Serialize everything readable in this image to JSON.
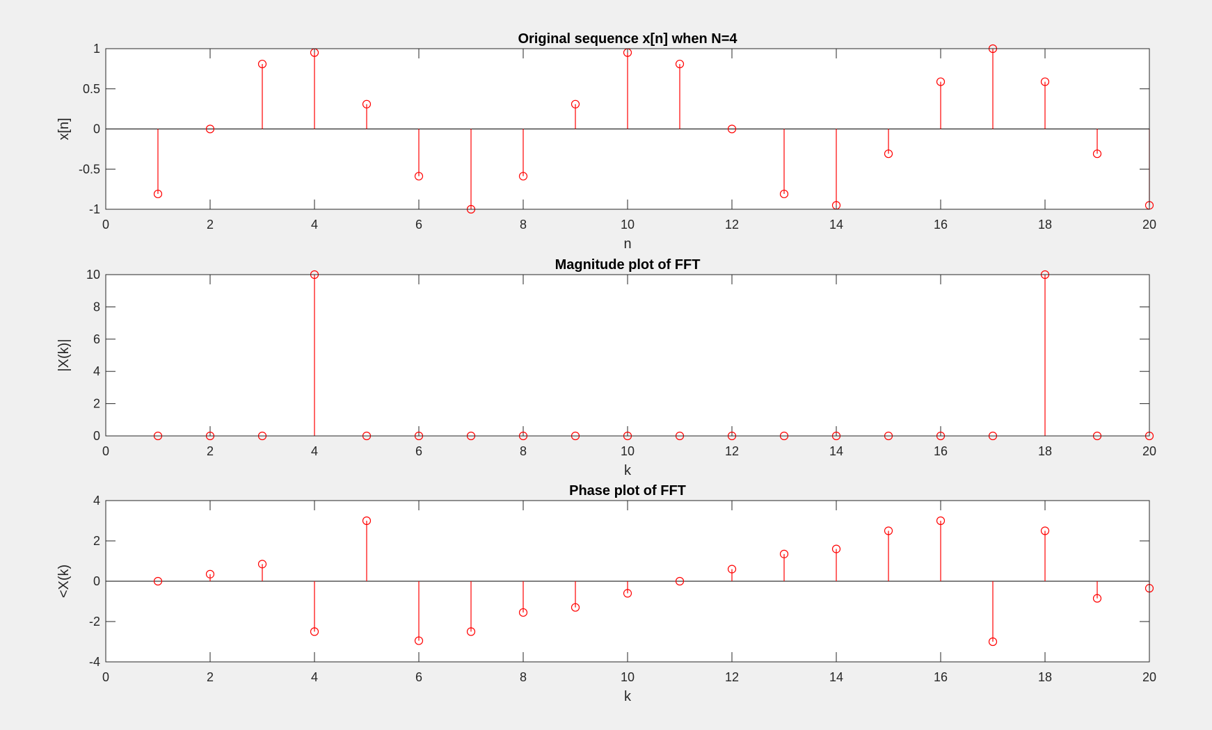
{
  "chart_data": [
    {
      "type": "stem",
      "title": "Original sequence x[n] when N=4",
      "xlabel": "n",
      "ylabel": "x[n]",
      "xlim": [
        0,
        20
      ],
      "ylim": [
        -1,
        1
      ],
      "xticks": [
        0,
        2,
        4,
        6,
        8,
        10,
        12,
        14,
        16,
        18,
        20
      ],
      "yticks": [
        -1,
        -0.5,
        0,
        0.5,
        1
      ],
      "grid": false,
      "color": "#ff0000",
      "x": [
        1,
        2,
        3,
        4,
        5,
        6,
        7,
        8,
        9,
        10,
        11,
        12,
        13,
        14,
        15,
        16,
        17,
        18,
        19,
        20
      ],
      "y": [
        -0.809,
        0,
        0.809,
        0.951,
        0.309,
        -0.588,
        -1,
        -0.588,
        0.309,
        0.951,
        0.809,
        0,
        -0.809,
        -0.951,
        -0.309,
        0.588,
        1,
        0.588,
        -0.309,
        -0.951
      ]
    },
    {
      "type": "stem",
      "title": "Magnitude plot of FFT",
      "xlabel": "k",
      "ylabel": "|X(k)|",
      "xlim": [
        0,
        20
      ],
      "ylim": [
        0,
        10
      ],
      "xticks": [
        0,
        2,
        4,
        6,
        8,
        10,
        12,
        14,
        16,
        18,
        20
      ],
      "yticks": [
        0,
        2,
        4,
        6,
        8,
        10
      ],
      "grid": false,
      "color": "#ff0000",
      "x": [
        1,
        2,
        3,
        4,
        5,
        6,
        7,
        8,
        9,
        10,
        11,
        12,
        13,
        14,
        15,
        16,
        17,
        18,
        19,
        20
      ],
      "y": [
        0,
        0,
        0,
        10,
        0,
        0,
        0,
        0,
        0,
        0,
        0,
        0,
        0,
        0,
        0,
        0,
        0,
        10,
        0,
        0
      ]
    },
    {
      "type": "stem",
      "title": "Phase plot of FFT",
      "xlabel": "k",
      "ylabel": "<X(k)",
      "xlim": [
        0,
        20
      ],
      "ylim": [
        -4,
        4
      ],
      "xticks": [
        0,
        2,
        4,
        6,
        8,
        10,
        12,
        14,
        16,
        18,
        20
      ],
      "yticks": [
        -4,
        -2,
        0,
        2,
        4
      ],
      "grid": false,
      "color": "#ff0000",
      "x": [
        1,
        2,
        3,
        4,
        5,
        6,
        7,
        8,
        9,
        10,
        11,
        12,
        13,
        14,
        15,
        16,
        17,
        18,
        19,
        20
      ],
      "y": [
        0,
        0.35,
        0.85,
        -2.5,
        3.0,
        -2.95,
        -2.5,
        -1.55,
        -1.3,
        -0.6,
        0,
        0.6,
        1.35,
        1.6,
        2.5,
        3.0,
        -3.0,
        2.5,
        -0.85,
        -0.35
      ]
    }
  ]
}
